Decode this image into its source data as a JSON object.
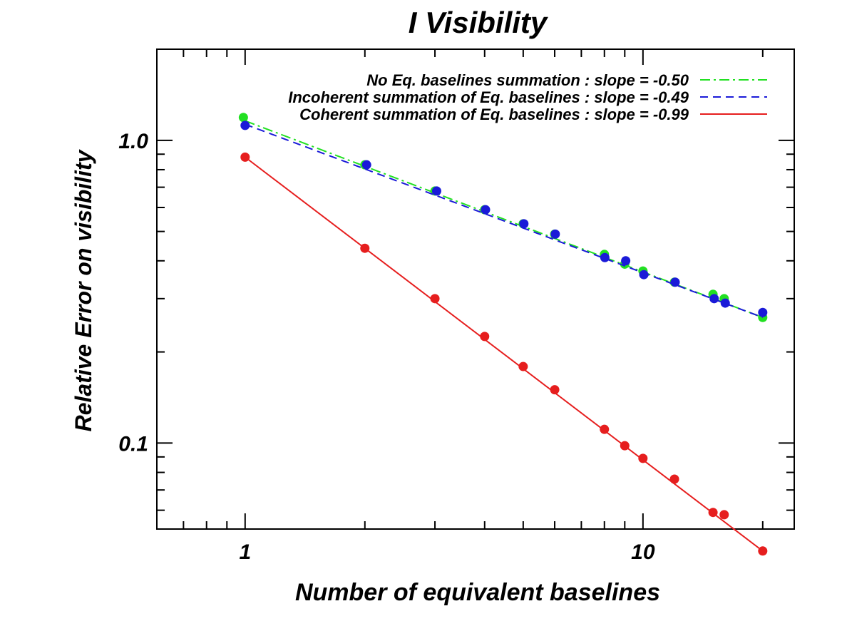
{
  "chart_data": {
    "type": "line",
    "title": "I Visibility",
    "xlabel": "Number of equivalent baselines",
    "ylabel": "Relative Error on visibility",
    "xscale": "log",
    "yscale": "log",
    "xlim": [
      0.6,
      24
    ],
    "ylim": [
      0.052,
      2.0
    ],
    "x_tick_labels": [
      {
        "value": 1,
        "label": "1"
      },
      {
        "value": 10,
        "label": "10"
      }
    ],
    "y_tick_labels": [
      {
        "value": 0.1,
        "label": "0.1"
      },
      {
        "value": 1.0,
        "label": "1.0"
      }
    ],
    "grid": false,
    "legend_position": "top-right",
    "series": [
      {
        "name": "No Eq. baselines summation : slope = -0.50",
        "color": "#22e022",
        "line_style": "dash-dot",
        "points": [
          [
            0.99,
            1.19
          ],
          [
            2.0,
            0.83
          ],
          [
            3.0,
            0.68
          ],
          [
            4.0,
            0.59
          ],
          [
            5.0,
            0.53
          ],
          [
            6.0,
            0.49
          ],
          [
            8.0,
            0.42
          ],
          [
            9.0,
            0.39
          ],
          [
            10.0,
            0.37
          ],
          [
            12.0,
            0.34
          ],
          [
            15.0,
            0.31
          ],
          [
            16.0,
            0.3
          ],
          [
            20.0,
            0.26
          ]
        ],
        "fit": [
          [
            1.0,
            1.16
          ],
          [
            20.0,
            0.26
          ]
        ]
      },
      {
        "name": "Incoherent summation of  Eq. baselines : slope = -0.49",
        "color": "#1a1ad8",
        "line_style": "dashed",
        "points": [
          [
            1.0,
            1.12
          ],
          [
            2.02,
            0.83
          ],
          [
            3.03,
            0.68
          ],
          [
            4.02,
            0.59
          ],
          [
            5.02,
            0.53
          ],
          [
            6.02,
            0.49
          ],
          [
            8.02,
            0.41
          ],
          [
            9.05,
            0.4
          ],
          [
            10.05,
            0.36
          ],
          [
            12.05,
            0.34
          ],
          [
            15.1,
            0.3
          ],
          [
            16.1,
            0.29
          ],
          [
            20.0,
            0.27
          ]
        ],
        "fit": [
          [
            1.0,
            1.13
          ],
          [
            20.0,
            0.26
          ]
        ]
      },
      {
        "name": "Coherent summation of Eq. baselines : slope = -0.99",
        "color": "#e61e1e",
        "line_style": "solid",
        "points": [
          [
            1.0,
            0.88
          ],
          [
            2.0,
            0.44
          ],
          [
            3.0,
            0.3
          ],
          [
            4.0,
            0.225
          ],
          [
            5.0,
            0.179
          ],
          [
            6.0,
            0.15
          ],
          [
            8.0,
            0.111
          ],
          [
            9.0,
            0.098
          ],
          [
            10.0,
            0.089
          ],
          [
            12.0,
            0.076
          ],
          [
            15.0,
            0.059
          ],
          [
            16.0,
            0.058
          ],
          [
            20.0,
            0.044
          ]
        ],
        "fit": [
          [
            1.0,
            0.88
          ],
          [
            20.0,
            0.044
          ]
        ]
      }
    ]
  }
}
